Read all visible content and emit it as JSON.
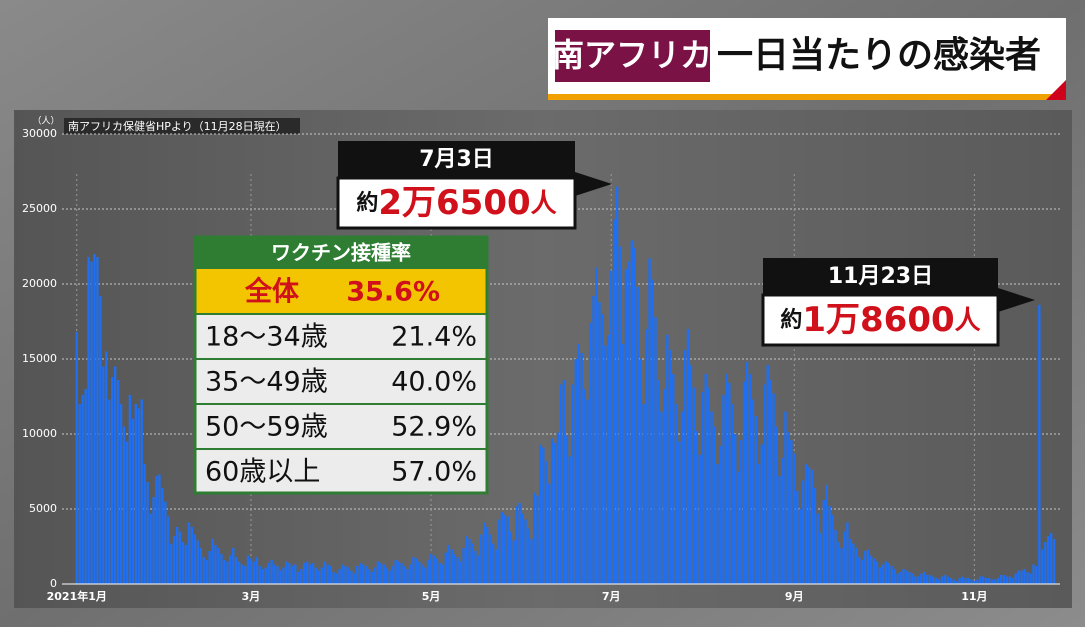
{
  "chart_data": {
    "type": "bar",
    "title_tag": "南アフリカ",
    "title": "一日当たりの感染者",
    "source": "南アフリカ保健省HPより（11月28日現在）",
    "y_unit": "（人）",
    "color": "#1f6ff0",
    "grid": true,
    "ylim": [
      0,
      30000
    ],
    "yticks": [
      0,
      5000,
      10000,
      15000,
      20000,
      25000,
      30000
    ],
    "xlim": [
      -5,
      333
    ],
    "xticks": [
      {
        "value": 0,
        "label": "2021年1月"
      },
      {
        "value": 59,
        "label": "3月"
      },
      {
        "value": 120,
        "label": "5月"
      },
      {
        "value": 181,
        "label": "7月"
      },
      {
        "value": 243,
        "label": "9月"
      },
      {
        "value": 304,
        "label": "11月"
      }
    ],
    "values": [
      16800,
      12000,
      12600,
      13000,
      21800,
      21500,
      22000,
      21800,
      19200,
      14500,
      15500,
      12300,
      13800,
      14500,
      13600,
      12000,
      10500,
      9500,
      12600,
      11000,
      12000,
      11700,
      12300,
      8000,
      6800,
      4700,
      5800,
      7200,
      7300,
      6400,
      5500,
      4500,
      2700,
      3200,
      3800,
      3500,
      2800,
      2600,
      4100,
      3800,
      3300,
      2900,
      2400,
      1800,
      1600,
      2200,
      3000,
      2600,
      2400,
      2000,
      1600,
      1500,
      1900,
      2400,
      1800,
      1500,
      1300,
      1200,
      1900,
      1700,
      1500,
      1800,
      1200,
      1000,
      1100,
      1400,
      1600,
      1300,
      1200,
      900,
      1100,
      1500,
      1400,
      1200,
      1300,
      800,
      1000,
      1400,
      1500,
      1300,
      1400,
      1100,
      900,
      1100,
      1500,
      1300,
      1200,
      800,
      700,
      1000,
      1300,
      1200,
      1100,
      900,
      700,
      1200,
      1400,
      1300,
      1200,
      1000,
      800,
      1100,
      1500,
      1400,
      1300,
      1100,
      900,
      1200,
      1600,
      1500,
      1400,
      1200,
      1000,
      1300,
      1800,
      1700,
      1500,
      1300,
      1100,
      1600,
      2000,
      1900,
      1700,
      1400,
      1300,
      2100,
      2600,
      2300,
      2000,
      1800,
      1500,
      2400,
      3200,
      3000,
      2700,
      2200,
      1900,
      3300,
      4100,
      3800,
      3300,
      2700,
      2300,
      4300,
      4800,
      4600,
      4500,
      3500,
      2900,
      5200,
      5400,
      4700,
      4300,
      3700,
      3000,
      6100,
      5900,
      9300,
      9100,
      8200,
      6700,
      9700,
      9400,
      10100,
      13300,
      13600,
      9900,
      8500,
      13300,
      15000,
      16000,
      15400,
      13000,
      12300,
      17400,
      19200,
      21100,
      18800,
      18000,
      15900,
      16600,
      20900,
      24300,
      26500,
      22500,
      16000,
      21000,
      21500,
      22900,
      22400,
      19800,
      15000,
      12000,
      17000,
      21700,
      20300,
      17800,
      13600,
      11500,
      13000,
      16600,
      15600,
      14000,
      12000,
      9500,
      11500,
      15600,
      17000,
      14600,
      13100,
      10200,
      8600,
      12800,
      14000,
      13100,
      11500,
      10500,
      8000,
      9200,
      12600,
      14000,
      13400,
      12000,
      10000,
      7500,
      9600,
      13500,
      14800,
      14000,
      12300,
      11200,
      8000,
      9300,
      13300,
      14600,
      13600,
      12700,
      10500,
      7200,
      8400,
      11500,
      10100,
      9600,
      8700,
      6200,
      5000,
      6900,
      8000,
      7800,
      7600,
      6400,
      4700,
      3400,
      5600,
      6600,
      5200,
      4600,
      3600,
      2800,
      2400,
      3500,
      4100,
      3000,
      2700,
      2400,
      1800,
      1600,
      2200,
      2300,
      1900,
      1700,
      1500,
      1100,
      1300,
      1500,
      1400,
      1200,
      1000,
      700,
      800,
      1000,
      900,
      800,
      700,
      500,
      500,
      700,
      800,
      600,
      600,
      500,
      400,
      300,
      500,
      600,
      500,
      400,
      300,
      200,
      400,
      500,
      400,
      400,
      300,
      200,
      300,
      500,
      500,
      400,
      400,
      300,
      300,
      400,
      600,
      600,
      500,
      500,
      400,
      700,
      900,
      900,
      1000,
      800,
      700,
      1300,
      1200,
      18600,
      2300,
      2800,
      3200,
      3400,
      3000
    ],
    "annotations": [
      {
        "date": "7月3日",
        "prefix": "約",
        "amount": "2万6500",
        "suffix": "人"
      },
      {
        "date": "11月23日",
        "prefix": "約",
        "amount": "1万8600",
        "suffix": "人"
      }
    ],
    "vaccine_table": {
      "title": "ワクチン接種率",
      "rows": [
        [
          "全体",
          "35.6%"
        ],
        [
          "18〜34歳",
          "21.4%"
        ],
        [
          "35〜49歳",
          "40.0%"
        ],
        [
          "50〜59歳",
          "52.9%"
        ],
        [
          "60歳以上",
          "57.0%"
        ]
      ]
    }
  }
}
